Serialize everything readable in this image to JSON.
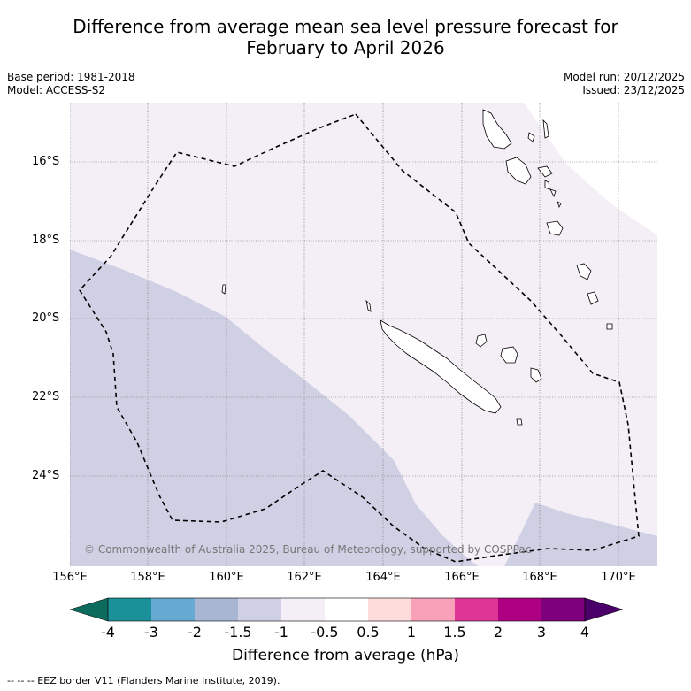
{
  "title": {
    "line1": "Difference from average mean sea level pressure forecast for",
    "line2": "February to April 2026"
  },
  "meta": {
    "base_period": "Base period: 1981-2018",
    "model": "Model: ACCESS-S2",
    "model_run": "Model run: 20/12/2025",
    "issued": "Issued: 23/12/2025"
  },
  "axes": {
    "latitudes": [
      "16°S",
      "18°S",
      "20°S",
      "22°S",
      "24°S"
    ],
    "longitudes": [
      "156°E",
      "158°E",
      "160°E",
      "162°E",
      "164°E",
      "166°E",
      "168°E",
      "170°E"
    ]
  },
  "copyright": "© Commonwealth of Australia 2025, Bureau of Meteorology, supported by COSPPac",
  "colorbar": {
    "ticks": [
      "-4",
      "-3",
      "-2",
      "-1.5",
      "-1",
      "-0.5",
      "0.5",
      "1",
      "1.5",
      "2",
      "3",
      "4"
    ],
    "colors": [
      "#0d6b5e",
      "#1a9199",
      "#66a9d1",
      "#a9b6d3",
      "#d0d0e5",
      "#f4eef6",
      "#ffffff",
      "#fedcdc",
      "#f9a1b9",
      "#de3696",
      "#ad0083",
      "#7f007c",
      "#4a0068"
    ],
    "label": "Difference from average (hPa)"
  },
  "legend": {
    "eez": "--  --  -- EEZ border V11 (Flanders Marine Institute, 2019)."
  }
}
